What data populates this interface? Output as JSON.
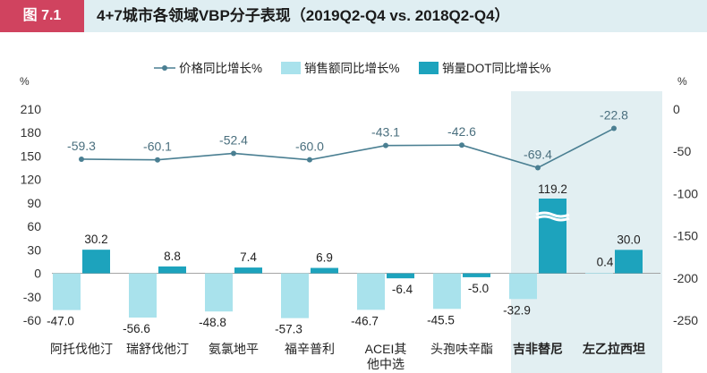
{
  "header": {
    "figure_label": "图 7.1",
    "title": "4+7城市各领域VBP分子表现（2019Q2-Q4 vs. 2018Q2-Q4）"
  },
  "colors": {
    "figure_label_bg": "#d0435f",
    "header_bg": "#dfeef2",
    "price_line": "#4a7f92",
    "sales_bar": "#a9e2ec",
    "dot_bar": "#1da3bd",
    "highlight_bg": "#e2eff2"
  },
  "chart_data": {
    "type": "bar",
    "categories": [
      [
        "阿托伐他汀"
      ],
      [
        "瑞舒伐他汀"
      ],
      [
        "氨氯地平"
      ],
      [
        "福辛普利"
      ],
      [
        "ACEI其",
        "他中选"
      ],
      [
        "头孢呋辛酯"
      ],
      [
        "吉非替尼"
      ],
      [
        "左乙拉西坦"
      ]
    ],
    "highlighted_categories": [
      6,
      7
    ],
    "series": [
      {
        "name": "价格同比增长%",
        "kind": "line",
        "axis": "right",
        "values": [
          -59.3,
          -60.1,
          -52.4,
          -60.0,
          -43.1,
          -42.6,
          -69.4,
          -22.8
        ],
        "labels": [
          "-59.3",
          "-60.1",
          "-52.4",
          "-60.0",
          "-43.1",
          "-42.6",
          "-69.4",
          "-22.8"
        ]
      },
      {
        "name": "销售额同比增长%",
        "kind": "bar",
        "axis": "left",
        "values": [
          -47.0,
          -56.6,
          -48.8,
          -57.3,
          -46.7,
          -45.5,
          -32.9,
          0.4
        ],
        "labels": [
          "-47.0",
          "-56.6",
          "-48.8",
          "-57.3",
          "-46.7",
          "-45.5",
          "-32.9",
          "0.4"
        ]
      },
      {
        "name": "销量DOT同比增长%",
        "kind": "bar",
        "axis": "left",
        "values": [
          30.2,
          8.8,
          7.4,
          6.9,
          -6.4,
          -5.0,
          119.2,
          30.0
        ],
        "labels": [
          "30.2",
          "8.8",
          "7.4",
          "6.9",
          "-6.4",
          "-5.0",
          "119.2",
          "30.0"
        ],
        "broken_bars": [
          6
        ]
      }
    ],
    "left_axis": {
      "unit": "%",
      "ylim": [
        -60,
        210
      ],
      "ticks": [
        210,
        180,
        150,
        120,
        90,
        60,
        30,
        0,
        -30,
        -60
      ]
    },
    "right_axis": {
      "unit": "%",
      "ylim": [
        -250,
        0
      ],
      "ticks": [
        0,
        -50,
        -100,
        -150,
        -200,
        -250
      ]
    },
    "legend_position": "top-center",
    "grid": false
  }
}
